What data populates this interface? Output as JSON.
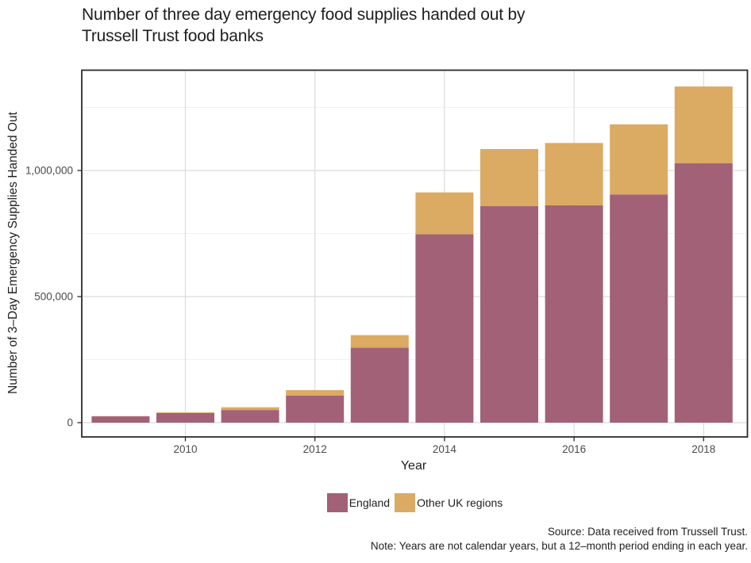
{
  "title": {
    "line1": "Number of three day emergency food supplies handed out by",
    "line2": "Trussell Trust food banks"
  },
  "axes": {
    "x_label": "Year",
    "y_label": "Number of 3–Day Emergency Supplies Handed Out",
    "x_ticks": [
      {
        "label": "2010",
        "year": 2010
      },
      {
        "label": "2012",
        "year": 2012
      },
      {
        "label": "2014",
        "year": 2014
      },
      {
        "label": "2016",
        "year": 2016
      },
      {
        "label": "2018",
        "year": 2018
      }
    ],
    "y_ticks": [
      {
        "label": "0",
        "value": 0
      },
      {
        "label": "500,000",
        "value": 500000
      },
      {
        "label": "1,000,000",
        "value": 1000000
      }
    ]
  },
  "legend": {
    "items": [
      {
        "label": "England",
        "color": "#a26177"
      },
      {
        "label": "Other UK regions",
        "color": "#dbaa63"
      }
    ]
  },
  "notes": {
    "source": "Source: Data received from Trussell Trust.",
    "note": "Note: Years are not calendar years, but a 12–month period ending in each year."
  },
  "colors": {
    "england": "#a26177",
    "other_uk": "#dbaa63",
    "panel_border": "#2b2b2b",
    "grid_major": "#dcdcdc",
    "grid_minor": "#f1f1f1",
    "tick_text": "#4a4a4a",
    "background": "#ffffff"
  },
  "chart_data": {
    "type": "bar",
    "stacked": true,
    "title": "Number of three day emergency food supplies handed out by Trussell Trust food banks",
    "xlabel": "Year",
    "ylabel": "Number of 3–Day Emergency Supplies Handed Out",
    "grid": true,
    "legend_position": "bottom",
    "categories": [
      2009,
      2010,
      2011,
      2012,
      2013,
      2014,
      2015,
      2016,
      2017,
      2018
    ],
    "series": [
      {
        "name": "England",
        "color": "#a26177",
        "values": [
          25000,
          38000,
          50000,
          107000,
          297000,
          747000,
          859000,
          862000,
          905000,
          1029000
        ]
      },
      {
        "name": "Other UK regions",
        "color": "#dbaa63",
        "values": [
          1000,
          3000,
          11000,
          22000,
          50000,
          166000,
          226000,
          247000,
          278000,
          304000
        ]
      }
    ],
    "totals": [
      26000,
      41000,
      61000,
      129000,
      347000,
      913000,
      1085000,
      1109000,
      1183000,
      1333000
    ],
    "ylim": [
      0,
      1400000
    ],
    "y_major_gridlines": [
      0,
      500000,
      1000000
    ],
    "y_minor_gridlines": [
      250000,
      750000,
      1250000
    ],
    "x_gridline_years": [
      2010,
      2012,
      2014,
      2016,
      2018
    ]
  }
}
